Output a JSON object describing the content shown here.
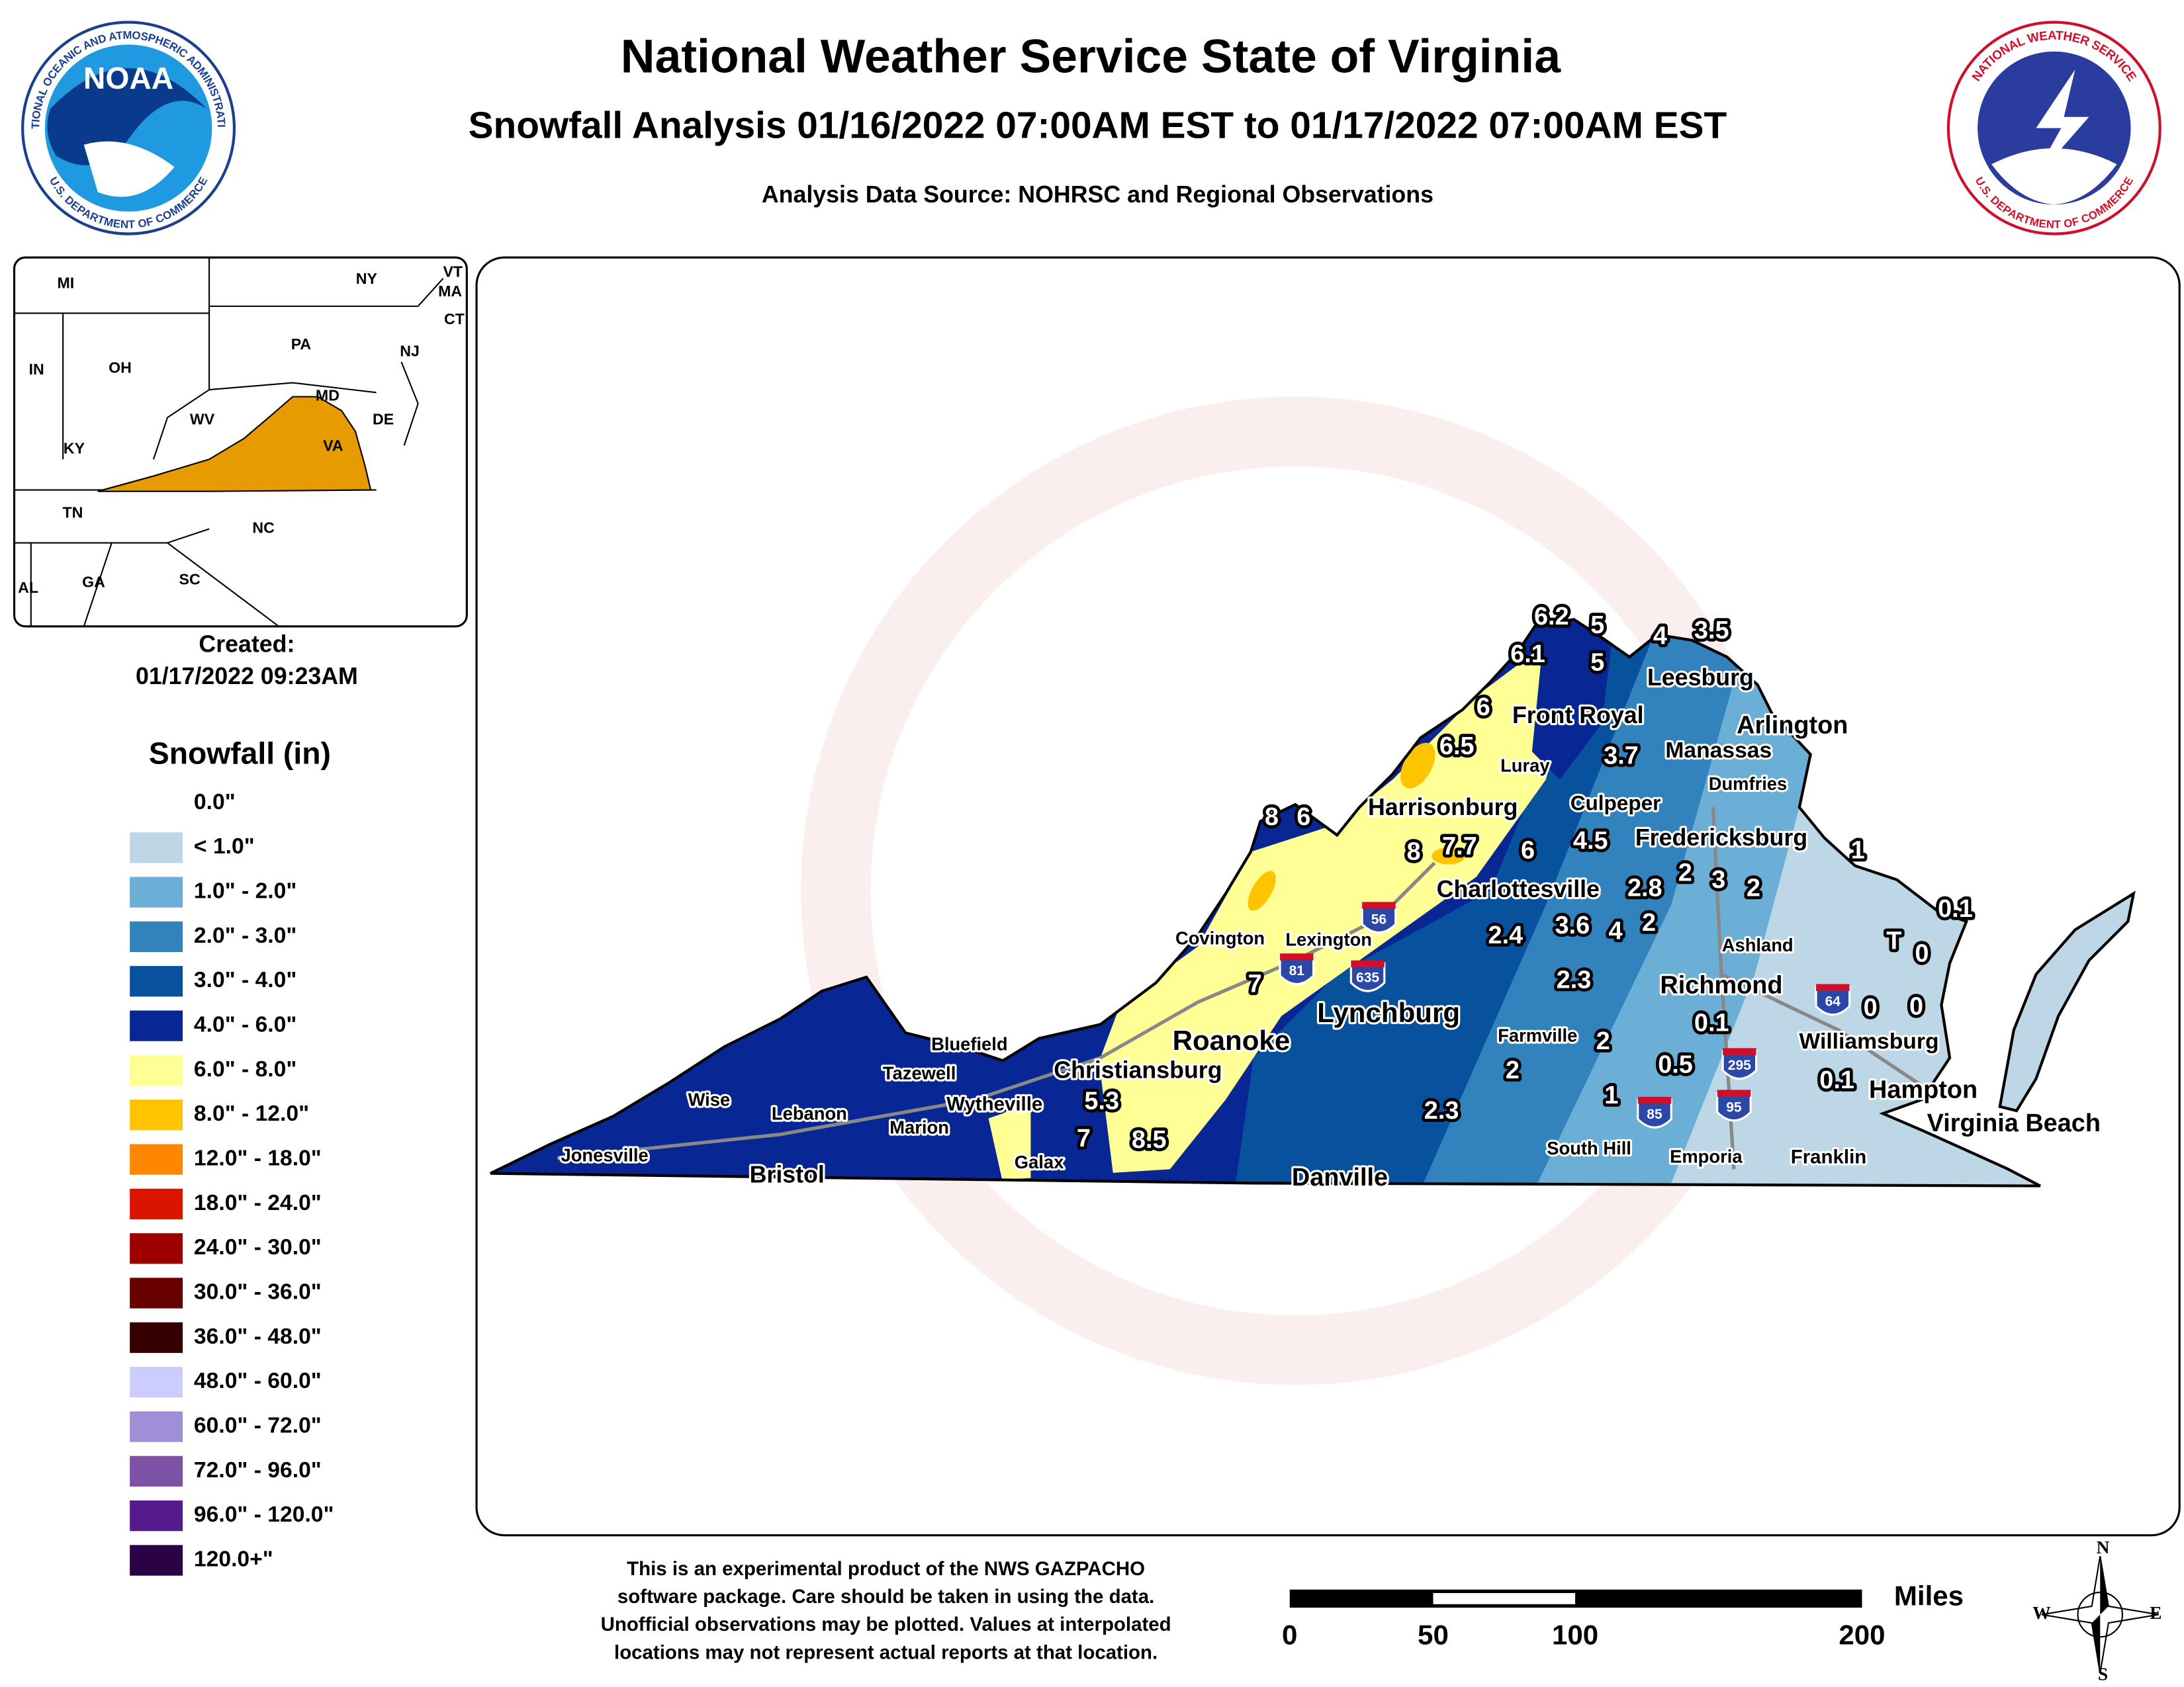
{
  "header": {
    "title": "National Weather Service State of Virginia",
    "subtitle": "Snowfall Analysis 01/16/2022 07:00AM EST to 01/17/2022 07:00AM EST",
    "source": "Analysis Data Source: NOHRSC and Regional Observations"
  },
  "logos": {
    "noaa": {
      "name": "NOAA",
      "agency": "NATIONAL OCEANIC AND ATMOSPHERIC ADMINISTRATION",
      "department": "U.S. DEPARTMENT OF COMMERCE"
    },
    "nws": {
      "agency": "NATIONAL WEATHER SERVICE",
      "department": "U.S. DEPARTMENT OF COMMERCE"
    }
  },
  "created": {
    "label": "Created:",
    "timestamp": "01/17/2022 09:23AM"
  },
  "inset_map": {
    "labels": [
      "MI",
      "NY",
      "VT",
      "MA",
      "CT",
      "IN",
      "OH",
      "PA",
      "NJ",
      "MD",
      "DE",
      "WV",
      "VA",
      "KY",
      "TN",
      "NC",
      "AL",
      "GA",
      "SC"
    ],
    "highlight_color": "#e69b00"
  },
  "legend": {
    "title": "Snowfall (in)",
    "items": [
      {
        "label": "0.0\"",
        "color": "#ffffff"
      },
      {
        "label": "< 1.0\"",
        "color": "#bdd7e7"
      },
      {
        "label": "1.0\" - 2.0\"",
        "color": "#6baed6"
      },
      {
        "label": "2.0\" - 3.0\"",
        "color": "#3182bd"
      },
      {
        "label": "3.0\" - 4.0\"",
        "color": "#08519c"
      },
      {
        "label": "4.0\" - 6.0\"",
        "color": "#082694"
      },
      {
        "label": "6.0\" - 8.0\"",
        "color": "#ffff96"
      },
      {
        "label": "8.0\" - 12.0\"",
        "color": "#ffc400"
      },
      {
        "label": "12.0\" - 18.0\"",
        "color": "#ff8700"
      },
      {
        "label": "18.0\" - 24.0\"",
        "color": "#db1400"
      },
      {
        "label": "24.0\" - 30.0\"",
        "color": "#9e0000"
      },
      {
        "label": "30.0\" - 36.0\"",
        "color": "#690000"
      },
      {
        "label": "36.0\" - 48.0\"",
        "color": "#360000"
      },
      {
        "label": "48.0\" - 60.0\"",
        "color": "#ccccff"
      },
      {
        "label": "60.0\" - 72.0\"",
        "color": "#9f8fd8"
      },
      {
        "label": "72.0\" - 96.0\"",
        "color": "#7d51a6"
      },
      {
        "label": "96.0\" - 120.0\"",
        "color": "#551a8b"
      },
      {
        "label": "120.0+\"",
        "color": "#2c0246"
      }
    ]
  },
  "map": {
    "cities": [
      "Front Royal",
      "Leesburg",
      "Arlington",
      "Manassas",
      "Luray",
      "Dumfries",
      "Harrisonburg",
      "Culpeper",
      "Fredericksburg",
      "Charlottesville",
      "Covington",
      "Lexington",
      "Ashland",
      "Richmond",
      "Roanoke",
      "Lynchburg",
      "Farmville",
      "Williamsburg",
      "Bluefield",
      "Christiansburg",
      "Tazewell",
      "Hampton",
      "Wise",
      "Wytheville",
      "Lebanon",
      "Marion",
      "Virginia Beach",
      "Galax",
      "Jonesville",
      "South Hill",
      "Emporia",
      "Franklin",
      "Bristol",
      "Danville"
    ],
    "snowfall_reports": [
      "6.2",
      "5",
      "4",
      "3.5",
      "6.1",
      "5",
      "6",
      "6.5",
      "3.7",
      "8",
      "6",
      "8",
      "7.7",
      "6",
      "4.5",
      "1",
      "2.8",
      "2",
      "3",
      "2",
      "0.1",
      "2.4",
      "3.6",
      "4",
      "2",
      "T",
      "0",
      "7",
      "2.3",
      "0",
      "0",
      "0.1",
      "2",
      "0.5",
      "2",
      "0.1",
      "1",
      "5.3",
      "2.3",
      "7",
      "8.5"
    ],
    "interstates": [
      "56",
      "81",
      "635",
      "64",
      "295",
      "85",
      "95"
    ]
  },
  "scale_bar": {
    "unit": "Miles",
    "ticks": [
      "0",
      "50",
      "100",
      "200"
    ]
  },
  "compass": [
    "N",
    "E",
    "S",
    "W"
  ],
  "disclaimer": [
    "This is an experimental product of the NWS GAZPACHO",
    "software package. Care should be taken in using the data.",
    "Unofficial observations may be plotted. Values at interpolated",
    "locations may not represent actual reports at that location."
  ]
}
